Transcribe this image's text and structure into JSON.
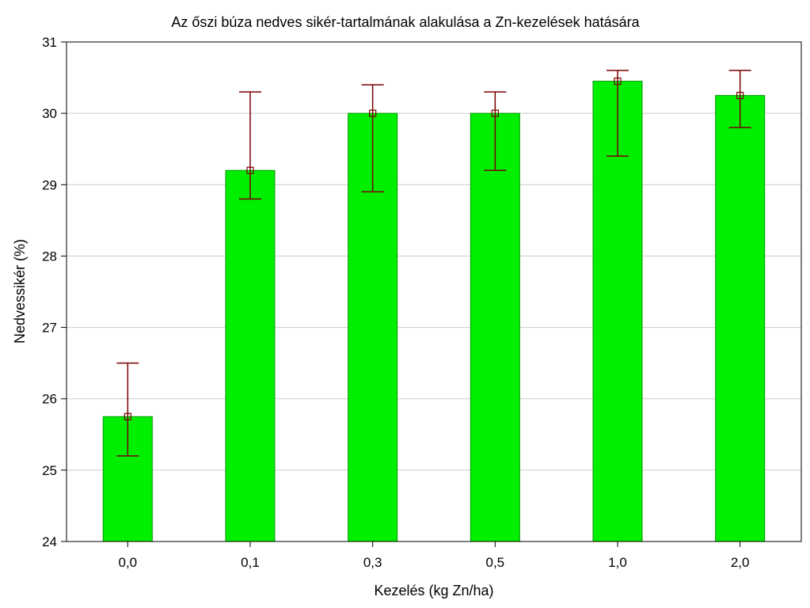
{
  "chart_data": {
    "type": "bar",
    "title": "Az őszi búza nedves sikér-tartalmának alakulása a Zn-kezelések hatására",
    "xlabel": "Kezelés (kg Zn/ha)",
    "ylabel": "Nedvessikér (%)",
    "ylim": [
      24,
      31
    ],
    "yticks": [
      24,
      25,
      26,
      27,
      28,
      29,
      30,
      31
    ],
    "grid": true,
    "categories": [
      "0,0",
      "0,1",
      "0,3",
      "0,5",
      "1,0",
      "2,0"
    ],
    "values": [
      25.75,
      29.2,
      30.0,
      30.0,
      30.45,
      30.25
    ],
    "error_low": [
      25.2,
      28.8,
      28.9,
      29.2,
      29.4,
      29.8
    ],
    "error_high": [
      26.5,
      30.3,
      30.4,
      30.3,
      30.6,
      30.6
    ],
    "colors": {
      "bar_fill": "#00ee00",
      "bar_stroke": "#009900",
      "error_bar": "#7a0000",
      "grid": "#cccccc"
    }
  }
}
